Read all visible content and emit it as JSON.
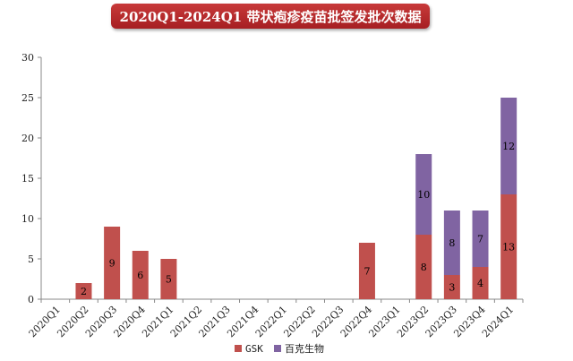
{
  "chart_data": {
    "type": "bar",
    "stacked": true,
    "title": "2020Q1-2024Q1 带状疱疹疫苗批签发批次数据",
    "categories": [
      "2020Q1",
      "2020Q2",
      "2020Q3",
      "2020Q4",
      "2021Q1",
      "2021Q2",
      "2021Q3",
      "2021Q4",
      "2022Q1",
      "2022Q2",
      "2022Q3",
      "2022Q4",
      "2023Q1",
      "2023Q2",
      "2023Q3",
      "2023Q4",
      "2024Q1"
    ],
    "series": [
      {
        "name": "GSK",
        "color": "#c0504d",
        "values": [
          0,
          2,
          9,
          6,
          5,
          0,
          0,
          0,
          0,
          0,
          0,
          7,
          0,
          8,
          3,
          4,
          13
        ]
      },
      {
        "name": "百克生物",
        "color": "#8064a2",
        "values": [
          0,
          0,
          0,
          0,
          0,
          0,
          0,
          0,
          0,
          0,
          0,
          0,
          0,
          10,
          8,
          7,
          12
        ]
      }
    ],
    "ylim": [
      0,
      30
    ],
    "yticks": [
      0,
      5,
      10,
      15,
      20,
      25,
      30
    ],
    "xlabel": "",
    "ylabel": "",
    "grid": false,
    "legend_position": "bottom"
  }
}
